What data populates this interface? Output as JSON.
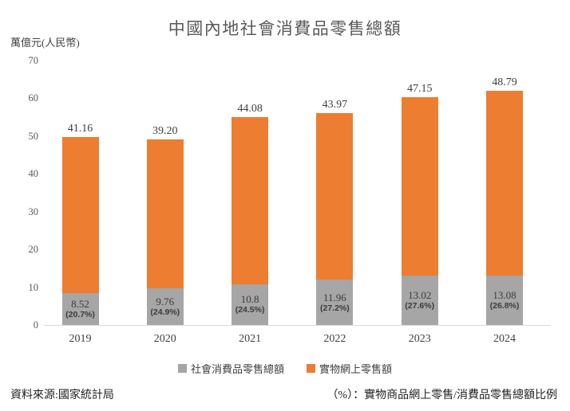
{
  "chart_data": {
    "type": "bar",
    "stacked": true,
    "title": "中國內地社會消費品零售總額",
    "unit_label": "萬億元(人民幣)",
    "categories": [
      "2019",
      "2020",
      "2021",
      "2022",
      "2023",
      "2024"
    ],
    "series": [
      {
        "name": "社會消費品零售總額",
        "color": "#A6A6A6",
        "values": [
          8.52,
          9.76,
          10.8,
          11.96,
          13.02,
          13.08
        ],
        "value_labels": [
          "8.52",
          "9.76",
          "10.8",
          "11.96",
          "13.02",
          "13.08"
        ],
        "percent_labels": [
          "(20.7%)",
          "(24.9%)",
          "(24.5%)",
          "(27.2%)",
          "(27.6%)",
          "(26.8%)"
        ]
      },
      {
        "name": "實物網上零售額",
        "color": "#ED7D31",
        "values": [
          41.16,
          39.2,
          44.08,
          43.97,
          47.15,
          48.79
        ],
        "value_labels": [
          "41.16",
          "39.20",
          "44.08",
          "43.97",
          "47.15",
          "48.79"
        ]
      }
    ],
    "ylim": [
      0,
      70
    ],
    "yticks": [
      0,
      10,
      20,
      30,
      40,
      50,
      60,
      70
    ],
    "grid": false,
    "legend_position": "bottom"
  },
  "footer": {
    "source": "資料來源:國家統計局",
    "note": "（%）：實物商品網上零售/消費品零售總額比例"
  },
  "colors": {
    "orange": "#ED7D31",
    "gray": "#A6A6A6",
    "axis_line": "#D9D9D9"
  }
}
